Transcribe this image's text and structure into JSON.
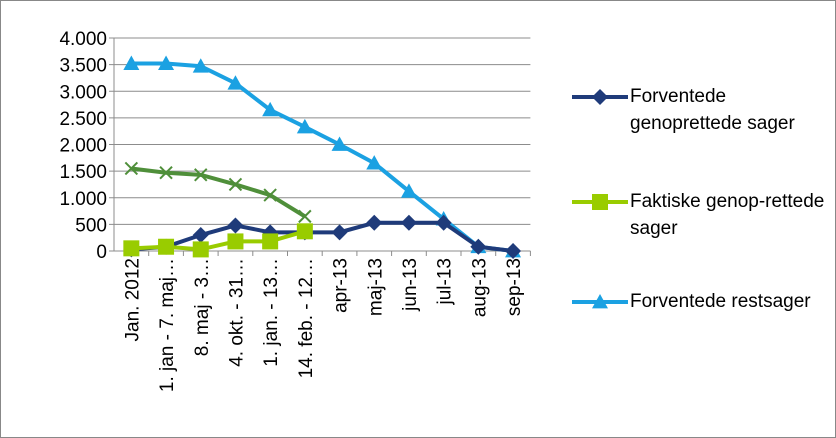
{
  "chart_data": {
    "type": "line",
    "categories": [
      "Jan. 2012",
      "1. jan - 7. maj…",
      "8. maj - 3…",
      "4. okt. - 31…",
      "1. jan. - 13…",
      "14. feb. - 12…",
      "apr-13",
      "maj-13",
      "jun-13",
      "jul-13",
      "aug-13",
      "sep-13"
    ],
    "series": [
      {
        "name": "Forventede genoprettede sager",
        "color": "#1f3b7a",
        "marker": "diamond",
        "values": [
          30,
          80,
          300,
          480,
          350,
          350,
          350,
          530,
          530,
          530,
          80,
          0
        ]
      },
      {
        "name": "Faktiske genop-rettede sager",
        "color": "#99cc00",
        "marker": "square",
        "values": [
          50,
          80,
          30,
          180,
          180,
          370,
          null,
          null,
          null,
          null,
          null,
          null
        ]
      },
      {
        "name": "Forventede restsager",
        "color": "#1ba1e2",
        "marker": "triangle",
        "values": [
          3520,
          3520,
          3470,
          3150,
          2650,
          2330,
          2000,
          1650,
          1120,
          600,
          80,
          0
        ]
      },
      {
        "color": "#4f8f3a",
        "marker": "x",
        "values": [
          1550,
          1470,
          1430,
          1250,
          1050,
          650,
          null,
          null,
          null,
          null,
          null,
          null
        ]
      }
    ],
    "ylim": [
      0,
      4000
    ],
    "yticks": [
      0,
      500,
      {
        "value": 1000,
        "label": "1.000"
      },
      {
        "value": 1500,
        "label": "1.500"
      },
      {
        "value": 2000,
        "label": "2.000"
      },
      {
        "value": 2500,
        "label": "2.500"
      },
      {
        "value": 3000,
        "label": "3.000"
      },
      {
        "value": 3500,
        "label": "3.500"
      },
      {
        "value": 4000,
        "label": "4.000"
      }
    ],
    "grid": true
  }
}
